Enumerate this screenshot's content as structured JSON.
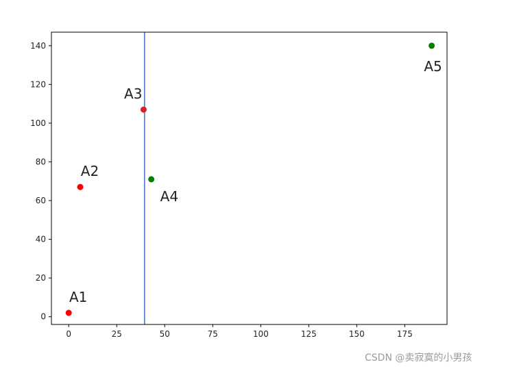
{
  "chart_data": {
    "type": "scatter",
    "xlim": [
      -9,
      197
    ],
    "ylim": [
      -4,
      147
    ],
    "xticks": [
      0,
      25,
      50,
      75,
      100,
      125,
      150,
      175
    ],
    "yticks": [
      0,
      20,
      40,
      60,
      80,
      100,
      120,
      140
    ],
    "grid": false,
    "vline": {
      "x": 39.5,
      "color": "#4472c4"
    },
    "points": [
      {
        "label": "A1",
        "x": 0,
        "y": 2,
        "color": "#ff0000",
        "label_pos": "above"
      },
      {
        "label": "A2",
        "x": 6,
        "y": 67,
        "color": "#ff0000",
        "label_pos": "above"
      },
      {
        "label": "A3",
        "x": 39,
        "y": 107,
        "color": "#e02020",
        "label_pos": "above-left"
      },
      {
        "label": "A4",
        "x": 43,
        "y": 71,
        "color": "#008000",
        "label_pos": "below-right"
      },
      {
        "label": "A5",
        "x": 189,
        "y": 140,
        "color": "#008000",
        "label_pos": "below"
      }
    ]
  },
  "watermark": "CSDN @卖寂寞的小男孩"
}
